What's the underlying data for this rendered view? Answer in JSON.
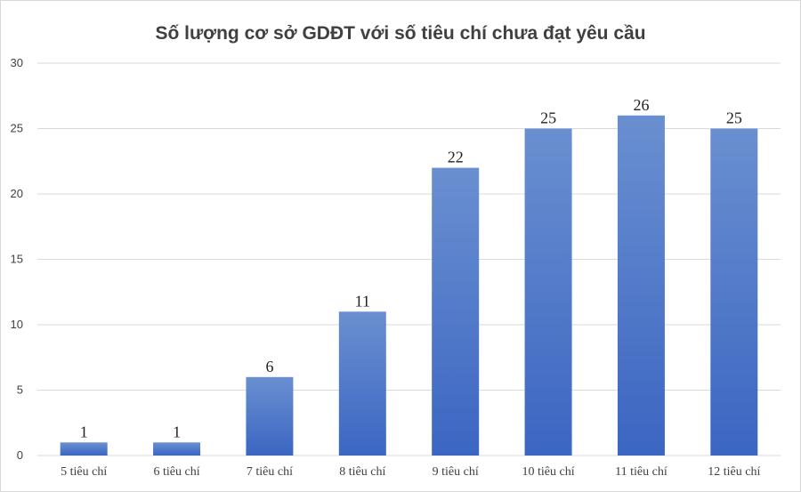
{
  "chart_data": {
    "type": "bar",
    "title": "Số lượng cơ sở GDĐT với số tiêu chí chưa đạt yêu cầu",
    "xlabel": "",
    "ylabel": "",
    "categories": [
      "5 tiêu chí",
      "6 tiêu chí",
      "7 tiêu chí",
      "8 tiêu chí",
      "9 tiêu chí",
      "10 tiêu chí",
      "11 tiêu chí",
      "12 tiêu chí"
    ],
    "values": [
      1,
      1,
      6,
      11,
      22,
      25,
      26,
      25
    ],
    "ylim": [
      0,
      30
    ],
    "yticks": [
      "0",
      "5",
      "10",
      "15",
      "20",
      "25",
      "30"
    ],
    "grid": true,
    "legend": "none",
    "colors": {
      "bar_top": "#6a8fd0",
      "bar_bottom": "#3b66c2",
      "grid": "#d9d9d9"
    }
  }
}
